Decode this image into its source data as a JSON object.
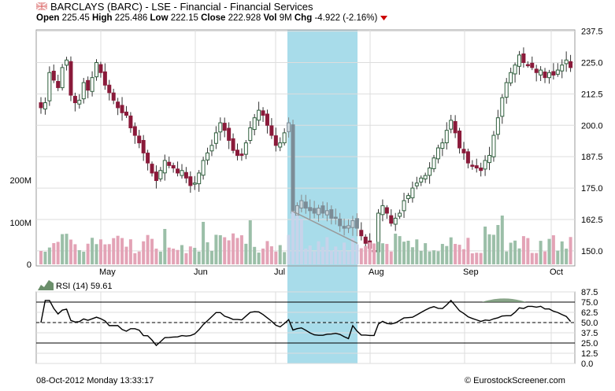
{
  "header": {
    "title": "BARCLAYS (BARC) - LSE - Financial - Financial Services",
    "open_label": "Open",
    "open": "225.45",
    "high_label": "High",
    "high": "225.486",
    "low_label": "Low",
    "low": "222.15",
    "close_label": "Close",
    "close": "222.928",
    "vol_label": "Vol",
    "vol": "9M",
    "chg_label": "Chg",
    "chg": "-4.922 (-2.16%)",
    "flag_icon": "uk-flag-icon",
    "chg_icon": "down-triangle-icon"
  },
  "footer": {
    "datetime": "08-Oct-2012 Monday 13:33:17",
    "credit": "© EurostockScreener.com"
  },
  "colors": {
    "up": "#2e5e3c",
    "down": "#8a1a3a",
    "vol_up": "#9bbfa8",
    "vol_down": "#e3a3b6",
    "highlight": "#a8dcea",
    "rsi_fill": "#6b8f6b"
  },
  "chart_data": [
    {
      "type": "candlestick",
      "series": [
        {
          "name": "BARCLAYS (BARC)"
        }
      ],
      "x_ticks": [
        "May",
        "Jun",
        "Jul",
        "Aug",
        "Sep",
        "Oct"
      ],
      "y_ticks": [
        "237.5",
        "225.0",
        "212.5",
        "200.0",
        "187.5",
        "175.0",
        "162.5",
        "150.0"
      ],
      "ylim": [
        144,
        238
      ],
      "grid": true,
      "highlight_range": [
        "Jul",
        "Aug"
      ],
      "close_path": [
        207,
        209,
        221,
        218,
        215,
        223,
        226,
        212,
        209,
        210,
        217,
        214,
        219,
        225,
        221,
        216,
        213,
        210,
        207,
        205,
        204,
        199,
        196,
        193,
        189,
        185,
        181,
        178,
        182,
        186,
        184,
        183,
        181,
        182,
        179,
        176,
        177,
        181,
        186,
        189,
        192,
        197,
        201,
        198,
        194,
        190,
        188,
        188,
        193,
        199,
        203,
        206,
        204,
        200,
        196,
        192,
        193,
        197,
        201,
        165,
        168,
        170,
        167,
        166,
        165,
        167,
        165,
        166,
        163,
        163,
        160,
        159,
        160,
        162,
        159,
        156,
        153,
        151,
        150,
        165,
        168,
        165,
        161,
        163,
        165,
        170,
        172,
        175,
        177,
        179,
        180,
        183,
        187,
        191,
        193,
        198,
        202,
        197,
        191,
        189,
        185,
        184,
        183,
        182,
        186,
        188,
        196,
        203,
        211,
        217,
        221,
        224,
        228,
        225,
        224,
        223,
        221,
        222,
        219,
        221,
        220,
        222,
        224,
        226,
        223
      ],
      "volume_ticks": [
        "200M",
        "100M",
        "0"
      ]
    },
    {
      "type": "line",
      "series": [
        {
          "name": "RSI (14)",
          "last": "59.61"
        }
      ],
      "y_ticks": [
        "87.5",
        "75.0",
        "62.5",
        "50.0",
        "37.5",
        "25.0",
        "12.5",
        "0.0"
      ],
      "ylim": [
        0,
        87.5
      ],
      "reference_lines": [
        75,
        50,
        25
      ]
    }
  ]
}
